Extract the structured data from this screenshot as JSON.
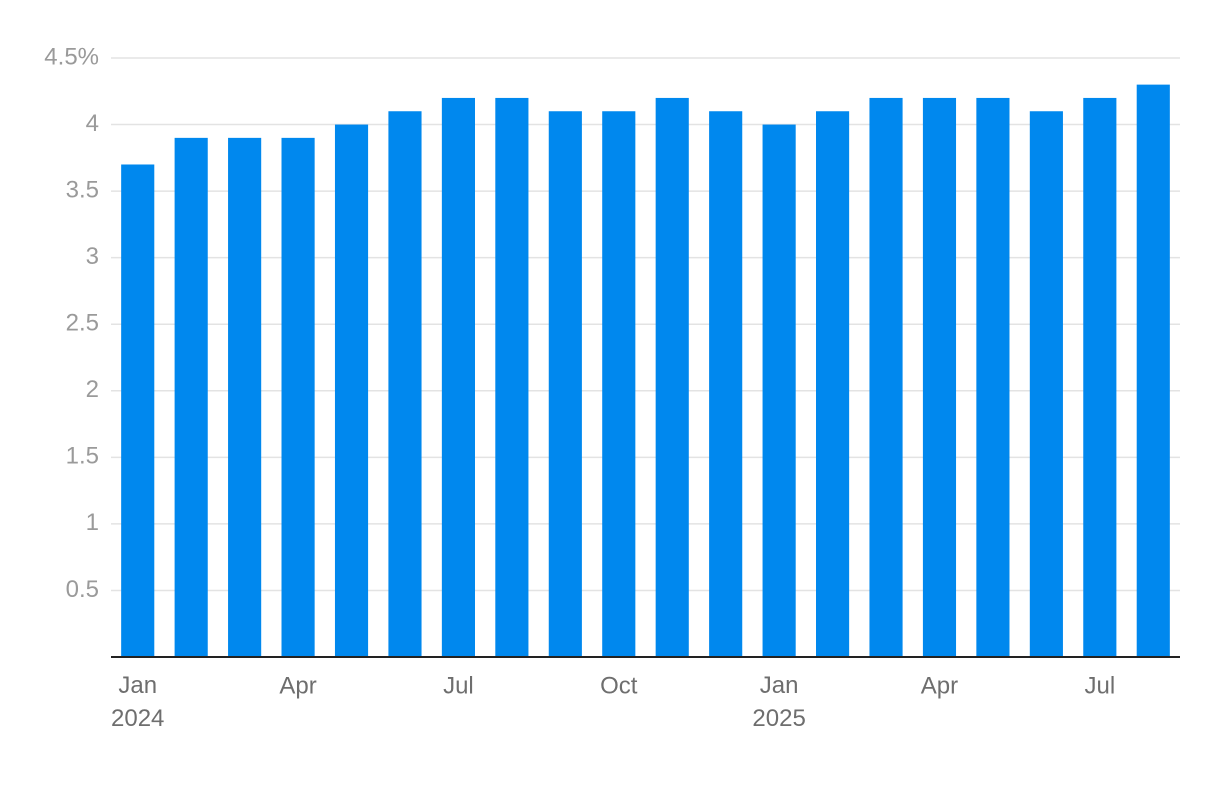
{
  "chart_data": {
    "type": "bar",
    "categories": [
      "Jan 2024",
      null,
      null,
      "Apr",
      null,
      null,
      "Jul",
      null,
      null,
      "Oct",
      null,
      null,
      "Jan 2025",
      null,
      null,
      "Apr",
      null,
      null,
      "Jul",
      null
    ],
    "values": [
      3.7,
      3.9,
      3.9,
      3.9,
      4.0,
      4.1,
      4.2,
      4.2,
      4.1,
      4.1,
      4.2,
      4.1,
      4.0,
      4.1,
      4.2,
      4.2,
      4.2,
      4.1,
      4.2,
      4.3
    ],
    "color": "#0088ee",
    "ylim": [
      0,
      4.5
    ],
    "yticks": [
      0.5,
      1,
      1.5,
      2,
      2.5,
      3,
      3.5,
      4,
      {
        "value": 4.5,
        "label": "4.5%"
      }
    ],
    "grid": true
  }
}
